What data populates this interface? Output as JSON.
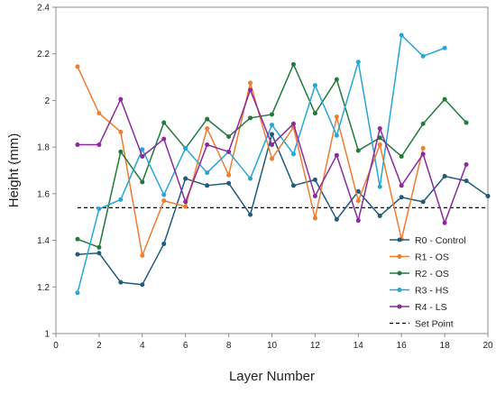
{
  "chart_data": {
    "type": "line",
    "title": "",
    "xlabel": "Layer Number",
    "ylabel": "Height (mm)",
    "xlim": [
      0,
      20
    ],
    "ylim": [
      1,
      2.4
    ],
    "x_ticks": [
      0,
      2,
      4,
      6,
      8,
      10,
      12,
      14,
      16,
      18,
      20
    ],
    "y_ticks": [
      1,
      1.2,
      1.4,
      1.6,
      1.8,
      2,
      2.2,
      2.4
    ],
    "grid": false,
    "legend_position": "bottom-right",
    "series": [
      {
        "name": "R0 - Control",
        "color": "#1f5b7a",
        "x": [
          1,
          2,
          3,
          4,
          5,
          6,
          7,
          8,
          9,
          10,
          11,
          12,
          13,
          14,
          15,
          16,
          17,
          18,
          19,
          20
        ],
        "y": [
          1.34,
          1.345,
          1.22,
          1.21,
          1.385,
          1.665,
          1.635,
          1.645,
          1.51,
          1.855,
          1.635,
          1.66,
          1.49,
          1.61,
          1.505,
          1.585,
          1.565,
          1.675,
          1.655,
          1.59
        ]
      },
      {
        "name": "R1 - OS",
        "color": "#ed7d31",
        "x": [
          1,
          2,
          3,
          4,
          5,
          6,
          7,
          8,
          9,
          10,
          11,
          12,
          13,
          14,
          15,
          16,
          17
        ],
        "y": [
          2.145,
          1.945,
          1.865,
          1.335,
          1.57,
          1.545,
          1.88,
          1.68,
          2.075,
          1.75,
          1.885,
          1.495,
          1.93,
          1.57,
          1.81,
          1.405,
          1.795
        ]
      },
      {
        "name": "R2 - OS",
        "color": "#217a3a",
        "x": [
          1,
          2,
          3,
          4,
          5,
          6,
          7,
          8,
          9,
          10,
          11,
          12,
          13,
          14,
          15,
          16,
          17,
          18,
          19
        ],
        "y": [
          1.405,
          1.37,
          1.78,
          1.65,
          1.905,
          1.795,
          1.92,
          1.845,
          1.925,
          1.94,
          2.155,
          1.945,
          2.09,
          1.785,
          1.84,
          1.76,
          1.9,
          2.005,
          1.905
        ]
      },
      {
        "name": "R3 - HS",
        "color": "#27a5d8",
        "x": [
          1,
          2,
          3,
          4,
          5,
          6,
          7,
          8,
          9,
          10,
          11,
          12,
          13,
          14,
          15,
          16,
          17,
          18
        ],
        "y": [
          1.175,
          1.535,
          1.575,
          1.79,
          1.595,
          1.795,
          1.69,
          1.78,
          1.665,
          1.895,
          1.77,
          2.065,
          1.85,
          2.165,
          1.63,
          2.28,
          2.19,
          2.225
        ]
      },
      {
        "name": "R4 - LS",
        "color": "#8b2a9c",
        "x": [
          1,
          2,
          3,
          4,
          5,
          6,
          7,
          8,
          9,
          10,
          11,
          12,
          13,
          14,
          15,
          16,
          17,
          18,
          19
        ],
        "y": [
          1.81,
          1.81,
          2.005,
          1.76,
          1.835,
          1.565,
          1.81,
          1.78,
          2.045,
          1.81,
          1.9,
          1.59,
          1.765,
          1.485,
          1.88,
          1.635,
          1.77,
          1.475,
          1.725
        ]
      }
    ],
    "reference_lines": [
      {
        "name": "Set Point",
        "y": 1.54,
        "color": "#000000",
        "style": "dashed"
      }
    ]
  }
}
